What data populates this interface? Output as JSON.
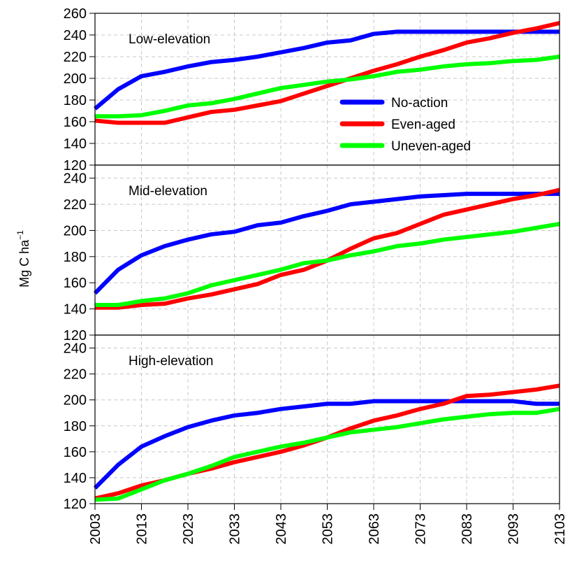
{
  "chart_data": {
    "type": "line",
    "ylabel": "Mg C ha",
    "ylabel_sup": "−1",
    "x": [
      2003,
      2008,
      2013,
      2018,
      2023,
      2028,
      2033,
      2038,
      2043,
      2048,
      2053,
      2058,
      2063,
      2068,
      2073,
      2078,
      2083,
      2088,
      2093,
      2098,
      2103
    ],
    "xticks": [
      "2003",
      "2013",
      "2023",
      "2033",
      "2043",
      "2053",
      "2063",
      "2073",
      "2083",
      "2093",
      "2103"
    ],
    "grid": true,
    "legend": {
      "placement": "top-panel-right",
      "entries": [
        {
          "label": "No-action",
          "color": "#0000ff"
        },
        {
          "label": "Even-aged",
          "color": "#ff0000"
        },
        {
          "label": "Uneven-aged",
          "color": "#00ff00"
        }
      ]
    },
    "panels": [
      {
        "title": "Low-elevation",
        "ylim": [
          120,
          260
        ],
        "yticks": [
          "120",
          "140",
          "160",
          "180",
          "200",
          "220",
          "240",
          "260"
        ],
        "series": [
          {
            "name": "No-action",
            "color": "#0000ff",
            "values": [
              172,
              190,
              202,
              206,
              211,
              215,
              217,
              220,
              224,
              228,
              233,
              235,
              241,
              243,
              243,
              243,
              243,
              243,
              243,
              243,
              243
            ]
          },
          {
            "name": "Even-aged",
            "color": "#ff0000",
            "values": [
              161,
              159,
              159,
              159,
              164,
              169,
              171,
              175,
              179,
              186,
              193,
              200,
              207,
              213,
              220,
              226,
              233,
              237,
              242,
              246,
              251
            ]
          },
          {
            "name": "Uneven-aged",
            "color": "#00ff00",
            "values": [
              165,
              165,
              166,
              170,
              175,
              177,
              181,
              186,
              191,
              194,
              197,
              199,
              202,
              206,
              208,
              211,
              213,
              214,
              216,
              217,
              220
            ]
          }
        ]
      },
      {
        "title": "Mid-elevation",
        "ylim": [
          120,
          250
        ],
        "yticks": [
          "120",
          "140",
          "160",
          "180",
          "200",
          "220",
          "240"
        ],
        "series": [
          {
            "name": "No-action",
            "color": "#0000ff",
            "values": [
              152,
              170,
              181,
              188,
              193,
              197,
              199,
              204,
              206,
              211,
              215,
              220,
              222,
              224,
              226,
              227,
              228,
              228,
              228,
              228,
              228
            ]
          },
          {
            "name": "Even-aged",
            "color": "#ff0000",
            "values": [
              141,
              141,
              143,
              144,
              148,
              151,
              155,
              159,
              166,
              170,
              177,
              186,
              194,
              198,
              205,
              212,
              216,
              220,
              224,
              227,
              231
            ]
          },
          {
            "name": "Uneven-aged",
            "color": "#00ff00",
            "values": [
              143,
              143,
              146,
              148,
              152,
              158,
              162,
              166,
              170,
              175,
              177,
              181,
              184,
              188,
              190,
              193,
              195,
              197,
              199,
              202,
              205
            ]
          }
        ]
      },
      {
        "title": "High-elevation",
        "ylim": [
          120,
          250
        ],
        "yticks": [
          "120",
          "140",
          "160",
          "180",
          "200",
          "220",
          "240"
        ],
        "series": [
          {
            "name": "No-action",
            "color": "#0000ff",
            "values": [
              132,
              150,
              164,
              172,
              179,
              184,
              188,
              190,
              193,
              195,
              197,
              197,
              199,
              199,
              199,
              199,
              199,
              199,
              199,
              197,
              197
            ]
          },
          {
            "name": "Even-aged",
            "color": "#ff0000",
            "values": [
              124,
              128,
              134,
              138,
              143,
              147,
              152,
              156,
              160,
              165,
              171,
              178,
              184,
              188,
              193,
              197,
              203,
              204,
              206,
              208,
              211
            ]
          },
          {
            "name": "Uneven-aged",
            "color": "#00ff00",
            "values": [
              123,
              124,
              131,
              138,
              143,
              149,
              156,
              160,
              164,
              167,
              171,
              175,
              177,
              179,
              182,
              185,
              187,
              189,
              190,
              190,
              193
            ]
          }
        ]
      }
    ]
  }
}
